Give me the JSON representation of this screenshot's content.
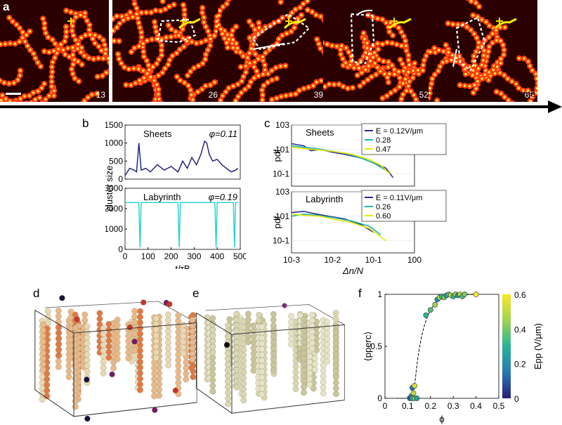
{
  "panel_labels": {
    "a": "a",
    "b": "b",
    "c": "c",
    "d": "d",
    "e": "e",
    "f": "f"
  },
  "panel_a": {
    "frames": [
      "13",
      "26",
      "39",
      "52",
      "65"
    ],
    "time_label": "time"
  },
  "chart_data": [
    {
      "panel": "b",
      "type": "line",
      "xlabel": "t/τB",
      "ylabel": "cluster size",
      "xlim": [
        0,
        500
      ],
      "xticks": [
        "0",
        "100",
        "200",
        "300",
        "400",
        "500"
      ],
      "subplots": [
        {
          "name": "Sheets",
          "annotation": "φ=0.11",
          "ylim": [
            0,
            1500
          ],
          "yticks": [
            "0",
            "500",
            "1000",
            "1500"
          ],
          "color": "#1a1a7a",
          "x": [
            0,
            20,
            40,
            50,
            60,
            70,
            90,
            110,
            140,
            170,
            200,
            230,
            250,
            270,
            290,
            310,
            330,
            345,
            355,
            365,
            380,
            400,
            420,
            440,
            460,
            480,
            490
          ],
          "y": [
            100,
            300,
            250,
            200,
            1000,
            250,
            300,
            200,
            400,
            250,
            350,
            200,
            500,
            300,
            600,
            400,
            700,
            1050,
            1000,
            700,
            500,
            550,
            400,
            300,
            200,
            250,
            300
          ]
        },
        {
          "name": "Labyrinth",
          "annotation": "φ=0.19",
          "ylim": [
            0,
            3000
          ],
          "yticks": [
            "0",
            "1000",
            "2000",
            "3000"
          ],
          "color": "#1ecfd8",
          "x": [
            0,
            60,
            65,
            70,
            75,
            230,
            235,
            240,
            245,
            380,
            390,
            395,
            400,
            470,
            475,
            480,
            485,
            490
          ],
          "y": [
            2300,
            2300,
            100,
            2300,
            2300,
            2300,
            100,
            2300,
            2300,
            2300,
            2300,
            100,
            2300,
            2300,
            100,
            2300,
            2300,
            2300
          ]
        }
      ]
    },
    {
      "panel": "c",
      "type": "line",
      "xlabel": "Δn/N",
      "ylabel": "pdf",
      "xscale": "log",
      "yscale": "log",
      "xlim": [
        0.001,
        1
      ],
      "xticks": [
        "10-3",
        "10-2",
        "10-1",
        "100"
      ],
      "yticks": [
        "10-1",
        "101",
        "103"
      ],
      "subplots": [
        {
          "name": "Sheets",
          "series": [
            {
              "name": "E = 0.12V/μm",
              "color": "#2b2b8c",
              "x": [
                0.001,
                0.002,
                0.003,
                0.005,
                0.01,
                0.02,
                0.05,
                0.1,
                0.2,
                0.3
              ],
              "y": [
                30,
                20,
                8,
                10,
                6,
                4,
                2,
                0.8,
                0.3,
                0.05
              ]
            },
            {
              "name": "0.28",
              "color": "#20b0b0",
              "x": [
                0.001,
                0.002,
                0.004,
                0.008,
                0.02,
                0.05,
                0.1,
                0.2
              ],
              "y": [
                20,
                15,
                12,
                8,
                5,
                2,
                0.8,
                0.2
              ]
            },
            {
              "name": "0.47",
              "color": "#e8e800",
              "x": [
                0.001,
                0.002,
                0.005,
                0.01,
                0.03,
                0.08,
                0.15,
                0.25
              ],
              "y": [
                15,
                12,
                9,
                7,
                4,
                1.5,
                0.5,
                0.1
              ]
            }
          ]
        },
        {
          "name": "Labyrinth",
          "series": [
            {
              "name": "E = 0.11V/μm",
              "color": "#2b2b8c",
              "x": [
                0.001,
                0.002,
                0.004,
                0.008,
                0.02,
                0.05,
                0.1
              ],
              "y": [
                20,
                25,
                15,
                10,
                6,
                2,
                0.5
              ]
            },
            {
              "name": "0.26",
              "color": "#20b0b0",
              "x": [
                0.001,
                0.002,
                0.004,
                0.01,
                0.03,
                0.08,
                0.15
              ],
              "y": [
                10,
                15,
                12,
                8,
                4,
                1.5,
                0.3
              ]
            },
            {
              "name": "0.60",
              "color": "#e8e800",
              "x": [
                0.001,
                0.002,
                0.005,
                0.01,
                0.03,
                0.08,
                0.2
              ],
              "y": [
                15,
                12,
                10,
                6,
                3,
                1,
                0.1
              ]
            }
          ]
        }
      ]
    },
    {
      "panel": "f",
      "type": "scatter",
      "xlabel": "ϕ",
      "ylabel": "⟨pperc⟩",
      "xlim": [
        0,
        0.5
      ],
      "ylim": [
        0,
        1
      ],
      "xticks": [
        "0",
        "0.1",
        "0.2",
        "0.3",
        "0.4",
        "0.5"
      ],
      "yticks": [
        "0",
        "0.5",
        "1"
      ],
      "colorbar": {
        "label": "Epp (V/μm)",
        "ticks": [
          "0",
          "0.2",
          "0.4",
          "0.6"
        ]
      },
      "x": [
        0.11,
        0.115,
        0.12,
        0.12,
        0.125,
        0.13,
        0.13,
        0.14,
        0.18,
        0.2,
        0.22,
        0.23,
        0.24,
        0.25,
        0.26,
        0.27,
        0.28,
        0.29,
        0.3,
        0.31,
        0.32,
        0.33,
        0.34,
        0.35,
        0.4
      ],
      "y": [
        0.0,
        0.02,
        0.0,
        0.1,
        0.05,
        0.0,
        0.12,
        0.0,
        0.8,
        0.85,
        0.9,
        0.95,
        0.97,
        0.98,
        0.97,
        0.99,
        1.0,
        0.99,
        0.98,
        1.0,
        0.99,
        1.0,
        0.98,
        1.0,
        1.0
      ],
      "e": [
        0.1,
        0.2,
        0.3,
        0.15,
        0.5,
        0.4,
        0.55,
        0.25,
        0.3,
        0.35,
        0.45,
        0.2,
        0.5,
        0.3,
        0.4,
        0.25,
        0.35,
        0.55,
        0.3,
        0.45,
        0.2,
        0.5,
        0.35,
        0.4,
        0.6
      ]
    }
  ]
}
